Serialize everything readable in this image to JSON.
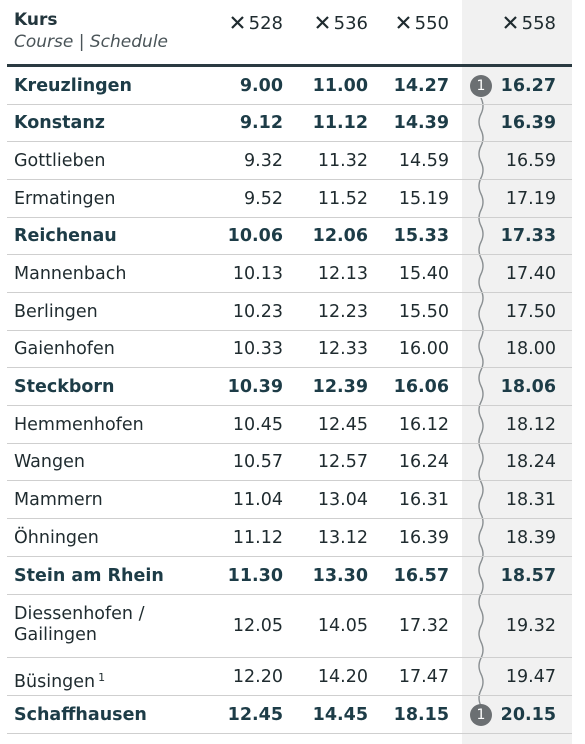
{
  "header": {
    "kurs": "Kurs",
    "subtitle": "Course | Schedule"
  },
  "columns": [
    "528",
    "536",
    "550",
    "558"
  ],
  "rows": [
    {
      "stop": "Kreuzlingen",
      "times": [
        "9.00",
        "11.00",
        "14.27",
        "16.27"
      ],
      "bold": true,
      "note": "1"
    },
    {
      "stop": "Konstanz",
      "times": [
        "9.12",
        "11.12",
        "14.39",
        "16.39"
      ],
      "bold": true
    },
    {
      "stop": "Gottlieben",
      "times": [
        "9.32",
        "11.32",
        "14.59",
        "16.59"
      ]
    },
    {
      "stop": "Ermatingen",
      "times": [
        "9.52",
        "11.52",
        "15.19",
        "17.19"
      ]
    },
    {
      "stop": "Reichenau",
      "times": [
        "10.06",
        "12.06",
        "15.33",
        "17.33"
      ],
      "bold": true
    },
    {
      "stop": "Mannenbach",
      "times": [
        "10.13",
        "12.13",
        "15.40",
        "17.40"
      ]
    },
    {
      "stop": "Berlingen",
      "times": [
        "10.23",
        "12.23",
        "15.50",
        "17.50"
      ]
    },
    {
      "stop": "Gaienhofen",
      "times": [
        "10.33",
        "12.33",
        "16.00",
        "18.00"
      ]
    },
    {
      "stop": "Steckborn",
      "times": [
        "10.39",
        "12.39",
        "16.06",
        "18.06"
      ],
      "bold": true
    },
    {
      "stop": "Hemmenhofen",
      "times": [
        "10.45",
        "12.45",
        "16.12",
        "18.12"
      ]
    },
    {
      "stop": "Wangen",
      "times": [
        "10.57",
        "12.57",
        "16.24",
        "18.24"
      ]
    },
    {
      "stop": "Mammern",
      "times": [
        "11.04",
        "13.04",
        "16.31",
        "18.31"
      ]
    },
    {
      "stop": "Öhningen",
      "times": [
        "11.12",
        "13.12",
        "16.39",
        "18.39"
      ]
    },
    {
      "stop": "Stein am Rhein",
      "times": [
        "11.30",
        "13.30",
        "16.57",
        "18.57"
      ],
      "bold": true
    },
    {
      "stop": "Diessenhofen /\nGailingen",
      "times": [
        "12.05",
        "14.05",
        "17.32",
        "19.32"
      ]
    },
    {
      "stop": "Büsingen",
      "sup": "1",
      "times": [
        "12.20",
        "14.20",
        "17.47",
        "19.47"
      ]
    },
    {
      "stop": "Schaffhausen",
      "times": [
        "12.45",
        "14.45",
        "18.15",
        "20.15"
      ],
      "bold": true,
      "note": "1"
    }
  ],
  "icons": {
    "column_marker": "cross-icon"
  }
}
